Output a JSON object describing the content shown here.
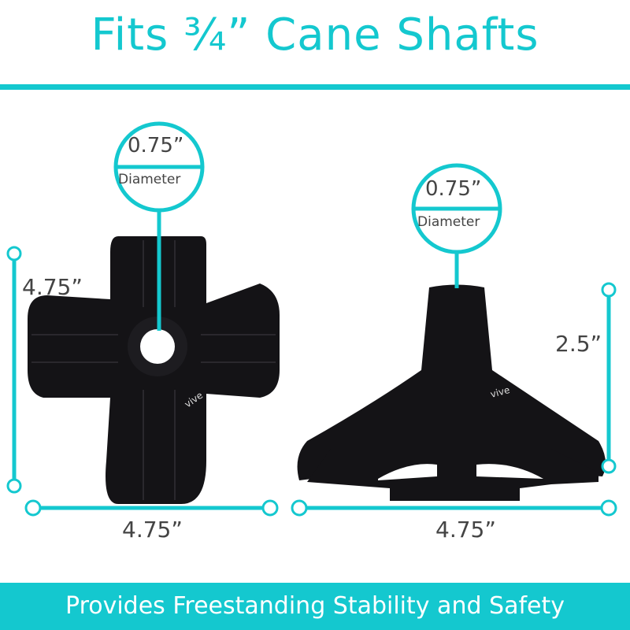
{
  "title": "Fits ¾” Cane Shafts",
  "accent_color": "#14c8cf",
  "left_product": {
    "callout": {
      "value": "0.75”",
      "label": "Diameter"
    },
    "height_label": "4.75”",
    "width_label": "4.75”",
    "logo": "vive"
  },
  "right_product": {
    "callout": {
      "value": "0.75”",
      "label": "Diameter"
    },
    "height_label": "2.5”",
    "width_label": "4.75”",
    "logo": "vive"
  },
  "banner": "Provides Freestanding Stability and Safety"
}
